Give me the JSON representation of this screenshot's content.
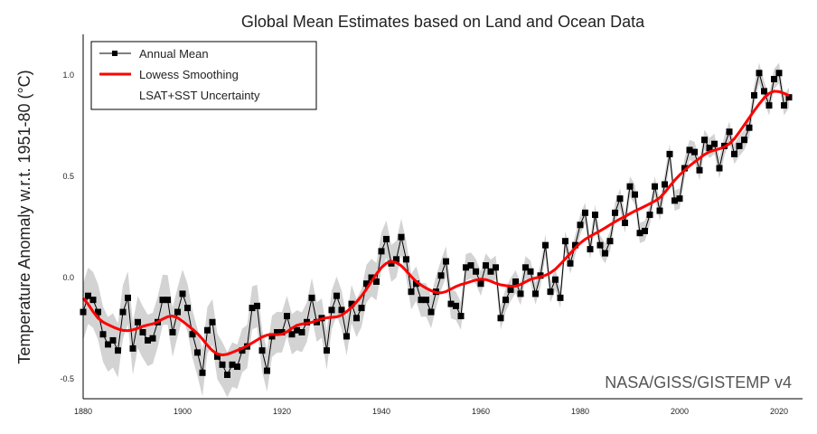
{
  "chart_data": {
    "type": "line",
    "title": "Global Mean Estimates based on Land and Ocean Data",
    "xlabel": "",
    "ylabel": "Temperature Anomaly w.r.t. 1951-80 (°C)",
    "xlim": [
      1880,
      2024
    ],
    "ylim": [
      -0.6,
      1.2
    ],
    "xticks": [
      "1880",
      "1900",
      "1920",
      "1940",
      "1960",
      "1980",
      "2000",
      "2020"
    ],
    "yticks": [
      "-0.5",
      "0.0",
      "0.5",
      "1.0"
    ],
    "grid": false,
    "legend_position": "top-left",
    "watermark": "NASA/GISS/GISTEMP v4",
    "colors": {
      "annual": "#000000",
      "smooth": "#ff0000",
      "uncertainty": "#d3d3d3"
    },
    "legend": [
      {
        "name": "Annual Mean"
      },
      {
        "name": "Lowess Smoothing"
      },
      {
        "name": "LSAT+SST Uncertainty"
      }
    ],
    "x_start": 1880,
    "annual_mean": [
      -0.17,
      -0.09,
      -0.11,
      -0.17,
      -0.28,
      -0.33,
      -0.31,
      -0.36,
      -0.17,
      -0.1,
      -0.35,
      -0.22,
      -0.27,
      -0.31,
      -0.3,
      -0.22,
      -0.11,
      -0.11,
      -0.27,
      -0.17,
      -0.08,
      -0.15,
      -0.28,
      -0.37,
      -0.47,
      -0.26,
      -0.22,
      -0.39,
      -0.43,
      -0.48,
      -0.43,
      -0.44,
      -0.36,
      -0.34,
      -0.15,
      -0.14,
      -0.36,
      -0.46,
      -0.29,
      -0.27,
      -0.27,
      -0.19,
      -0.28,
      -0.26,
      -0.27,
      -0.22,
      -0.1,
      -0.22,
      -0.2,
      -0.36,
      -0.16,
      -0.09,
      -0.16,
      -0.29,
      -0.13,
      -0.2,
      -0.15,
      -0.03,
      0.0,
      -0.02,
      0.13,
      0.19,
      0.07,
      0.09,
      0.2,
      0.09,
      -0.07,
      -0.03,
      -0.11,
      -0.11,
      -0.17,
      -0.07,
      0.01,
      0.08,
      -0.13,
      -0.14,
      -0.19,
      0.05,
      0.06,
      0.03,
      -0.03,
      0.06,
      0.03,
      0.05,
      -0.2,
      -0.11,
      -0.06,
      -0.02,
      -0.08,
      0.05,
      0.03,
      -0.08,
      0.01,
      0.16,
      -0.07,
      -0.01,
      -0.1,
      0.18,
      0.07,
      0.16,
      0.26,
      0.32,
      0.14,
      0.31,
      0.16,
      0.12,
      0.18,
      0.32,
      0.39,
      0.27,
      0.45,
      0.41,
      0.22,
      0.23,
      0.31,
      0.45,
      0.33,
      0.46,
      0.61,
      0.38,
      0.39,
      0.54,
      0.63,
      0.62,
      0.53,
      0.68,
      0.64,
      0.66,
      0.54,
      0.65,
      0.72,
      0.61,
      0.65,
      0.68,
      0.74,
      0.9,
      1.01,
      0.92,
      0.85,
      0.98,
      1.01,
      0.85,
      0.89
    ],
    "uncertainty_halfwidth": [
      [
        1880,
        0.14
      ],
      [
        1900,
        0.12
      ],
      [
        1920,
        0.1
      ],
      [
        1945,
        0.09
      ],
      [
        1960,
        0.06
      ],
      [
        1980,
        0.05
      ],
      [
        2022,
        0.05
      ]
    ],
    "smoothing": "lowess"
  }
}
